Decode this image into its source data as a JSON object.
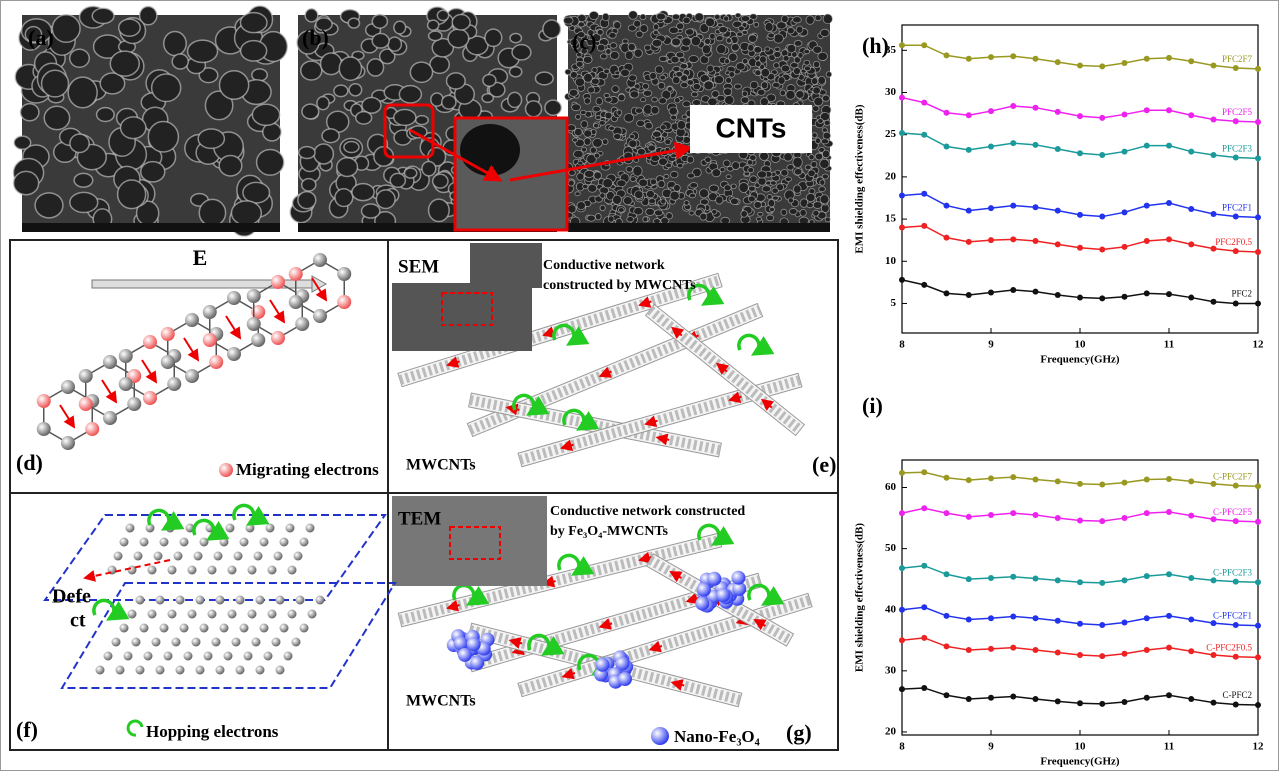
{
  "images": {
    "a": {
      "label": "(a)"
    },
    "b": {
      "label": "(b)"
    },
    "c": {
      "label": "(c)",
      "annotation": "CNTs"
    }
  },
  "schematics": {
    "d": {
      "label": "(d)",
      "field": "E",
      "legend": "Migrating electrons"
    },
    "e": {
      "label": "(e)",
      "inset": "SEM",
      "caption": [
        "Conductive network",
        "constructed by MWCNTs"
      ],
      "tube_label": "MWCNTs"
    },
    "f": {
      "label": "(f)",
      "defect": [
        "Defe",
        "ct"
      ],
      "legend": "Hopping electrons"
    },
    "g": {
      "label": "(g)",
      "inset": "TEM",
      "caption": [
        "Conductive network constructed",
        "by Fe₃O₄-MWCNTs"
      ],
      "tube_label": "MWCNTs",
      "legend": "Nano-Fe₃O₄"
    }
  },
  "chart_data": [
    {
      "type": "line",
      "title": "(h)",
      "x_label": "Frequency(GHz)",
      "y_label": "EMI shielding effectiveness(dB)",
      "x": [
        8,
        8.25,
        8.5,
        8.75,
        9,
        9.25,
        9.5,
        9.75,
        10,
        10.25,
        10.5,
        10.75,
        11,
        11.25,
        11.5,
        11.75,
        12
      ],
      "xlim": [
        8,
        12
      ],
      "xticks": [
        8,
        9,
        10,
        11,
        12
      ],
      "ylim": [
        1.5,
        38
      ],
      "yticks": [
        5,
        10,
        15,
        20,
        25,
        30,
        35
      ],
      "series": [
        {
          "name": "PFC2",
          "color": "#111111",
          "values": [
            7.8,
            7.2,
            6.2,
            6.0,
            6.3,
            6.6,
            6.4,
            6.0,
            5.7,
            5.6,
            5.8,
            6.2,
            6.1,
            5.7,
            5.2,
            5.0,
            5.0
          ]
        },
        {
          "name": "PFC2F0.5",
          "color": "#ee2222",
          "values": [
            14.0,
            14.2,
            12.8,
            12.3,
            12.5,
            12.6,
            12.4,
            12.0,
            11.6,
            11.4,
            11.7,
            12.4,
            12.6,
            12.0,
            11.5,
            11.2,
            11.1
          ]
        },
        {
          "name": "PFC2F1",
          "color": "#2233ee",
          "values": [
            17.8,
            18.0,
            16.6,
            16.0,
            16.3,
            16.6,
            16.4,
            16.0,
            15.5,
            15.3,
            15.8,
            16.6,
            16.9,
            16.2,
            15.6,
            15.3,
            15.2
          ]
        },
        {
          "name": "PFC2F3",
          "color": "#1a9a9a",
          "values": [
            25.2,
            25.0,
            23.6,
            23.2,
            23.6,
            24.0,
            23.8,
            23.3,
            22.8,
            22.6,
            23.0,
            23.7,
            23.7,
            23.0,
            22.6,
            22.3,
            22.2
          ]
        },
        {
          "name": "PFC2F5",
          "color": "#ee22ee",
          "values": [
            29.4,
            28.8,
            27.6,
            27.3,
            27.8,
            28.4,
            28.2,
            27.7,
            27.2,
            27.0,
            27.4,
            27.9,
            27.9,
            27.3,
            26.8,
            26.6,
            26.5
          ]
        },
        {
          "name": "PFC2F7",
          "color": "#999922",
          "values": [
            35.6,
            35.6,
            34.4,
            34.0,
            34.2,
            34.3,
            34.0,
            33.6,
            33.2,
            33.1,
            33.5,
            34.0,
            34.1,
            33.7,
            33.2,
            32.9,
            32.8
          ]
        }
      ]
    },
    {
      "type": "line",
      "title": "(i)",
      "x_label": "Frequency(GHz)",
      "y_label": "EMI shielding effectiveness(dB)",
      "x": [
        8,
        8.25,
        8.5,
        8.75,
        9,
        9.25,
        9.5,
        9.75,
        10,
        10.25,
        10.5,
        10.75,
        11,
        11.25,
        11.5,
        11.75,
        12
      ],
      "xlim": [
        8,
        12
      ],
      "xticks": [
        8,
        9,
        10,
        11,
        12
      ],
      "ylim": [
        19.5,
        64.5
      ],
      "yticks": [
        20,
        30,
        40,
        50,
        60
      ],
      "series": [
        {
          "name": "C-PFC2",
          "color": "#111111",
          "values": [
            27.0,
            27.2,
            26.0,
            25.4,
            25.6,
            25.8,
            25.4,
            25.0,
            24.7,
            24.6,
            24.9,
            25.6,
            26.0,
            25.4,
            24.8,
            24.5,
            24.4
          ]
        },
        {
          "name": "C-PFC2F0.5",
          "color": "#ee2222",
          "values": [
            35.0,
            35.4,
            34.0,
            33.4,
            33.6,
            33.8,
            33.4,
            33.0,
            32.6,
            32.4,
            32.8,
            33.4,
            33.8,
            33.2,
            32.6,
            32.3,
            32.2
          ]
        },
        {
          "name": "C-PFC2F1",
          "color": "#2233ee",
          "values": [
            40.0,
            40.4,
            39.0,
            38.4,
            38.6,
            38.9,
            38.6,
            38.2,
            37.7,
            37.5,
            37.9,
            38.6,
            39.0,
            38.4,
            37.8,
            37.5,
            37.4
          ]
        },
        {
          "name": "C-PFC2F3",
          "color": "#1a9a9a",
          "values": [
            46.8,
            47.2,
            45.8,
            45.0,
            45.2,
            45.4,
            45.1,
            44.8,
            44.5,
            44.4,
            44.8,
            45.5,
            45.8,
            45.2,
            44.8,
            44.6,
            44.5
          ]
        },
        {
          "name": "C-PFC2F5",
          "color": "#ee22ee",
          "values": [
            55.8,
            56.6,
            55.8,
            55.2,
            55.5,
            55.8,
            55.5,
            55.0,
            54.6,
            54.5,
            55.0,
            55.8,
            56.0,
            55.4,
            54.8,
            54.5,
            54.4
          ]
        },
        {
          "name": "C-PFC2F7",
          "color": "#999922",
          "values": [
            62.4,
            62.5,
            61.6,
            61.2,
            61.5,
            61.7,
            61.3,
            61.0,
            60.6,
            60.5,
            60.8,
            61.3,
            61.4,
            61.0,
            60.6,
            60.3,
            60.2
          ]
        }
      ]
    }
  ]
}
